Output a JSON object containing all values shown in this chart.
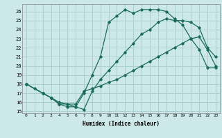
{
  "xlabel": "Humidex (Indice chaleur)",
  "ylabel": "",
  "bg_color": "#cce8e8",
  "grid_color": "#aacfcf",
  "line_color": "#1a6b5a",
  "xlim": [
    -0.5,
    23.5
  ],
  "ylim": [
    14.8,
    26.8
  ],
  "xticks": [
    0,
    1,
    2,
    3,
    4,
    5,
    6,
    7,
    8,
    9,
    10,
    11,
    12,
    13,
    14,
    15,
    16,
    17,
    18,
    19,
    20,
    21,
    22,
    23
  ],
  "yticks": [
    15,
    16,
    17,
    18,
    19,
    20,
    21,
    22,
    23,
    24,
    25,
    26
  ],
  "line1_x": [
    0,
    1,
    2,
    3,
    4,
    5,
    6,
    7,
    8,
    9,
    10,
    11,
    12,
    13,
    14,
    15,
    16,
    17,
    18,
    19,
    20,
    21,
    22,
    23
  ],
  "line1_y": [
    18.0,
    17.5,
    17.0,
    16.5,
    15.8,
    15.8,
    15.5,
    17.0,
    19.0,
    21.0,
    24.8,
    25.5,
    26.2,
    25.8,
    26.2,
    26.2,
    26.2,
    26.0,
    25.2,
    24.5,
    23.0,
    21.8,
    19.8,
    19.8
  ],
  "line2_x": [
    0,
    2,
    3,
    4,
    5,
    6,
    7,
    8,
    9,
    10,
    11,
    12,
    13,
    14,
    15,
    16,
    17,
    18,
    19,
    20,
    21,
    22,
    23
  ],
  "line2_y": [
    18.0,
    17.0,
    16.5,
    16.0,
    15.8,
    15.8,
    17.2,
    17.5,
    17.8,
    18.2,
    18.5,
    19.0,
    19.5,
    20.0,
    20.5,
    21.0,
    21.5,
    22.0,
    22.5,
    23.0,
    23.2,
    21.8,
    20.0
  ],
  "line3_x": [
    0,
    2,
    3,
    4,
    5,
    6,
    7,
    8,
    9,
    10,
    11,
    12,
    13,
    14,
    15,
    16,
    17,
    18,
    19,
    20,
    21,
    22,
    23
  ],
  "line3_y": [
    18.0,
    17.0,
    16.5,
    15.8,
    15.5,
    15.5,
    15.2,
    17.2,
    18.5,
    19.5,
    20.5,
    21.5,
    22.5,
    23.5,
    24.0,
    24.8,
    25.2,
    25.0,
    25.0,
    24.8,
    24.2,
    22.0,
    21.0
  ]
}
